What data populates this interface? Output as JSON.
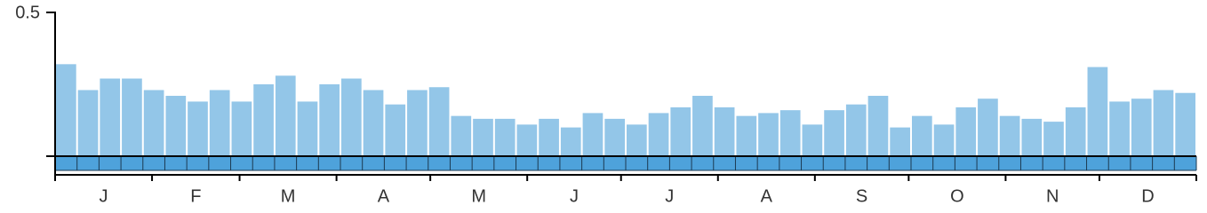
{
  "chart_data": {
    "type": "bar",
    "color": "#93c6e8",
    "values": [
      0.32,
      0.23,
      0.27,
      0.27,
      0.23,
      0.21,
      0.19,
      0.23,
      0.19,
      0.25,
      0.28,
      0.19,
      0.25,
      0.27,
      0.23,
      0.18,
      0.23,
      0.24,
      0.14,
      0.13,
      0.13,
      0.11,
      0.13,
      0.1,
      0.15,
      0.13,
      0.11,
      0.15,
      0.17,
      0.21,
      0.17,
      0.14,
      0.15,
      0.16,
      0.11,
      0.16,
      0.18,
      0.21,
      0.1,
      0.14,
      0.11,
      0.17,
      0.2,
      0.14,
      0.13,
      0.12,
      0.17,
      0.31,
      0.19,
      0.2,
      0.23,
      0.22
    ],
    "ylim": [
      0,
      0.5
    ],
    "yticks": [
      0.5
    ],
    "months": [
      "J",
      "F",
      "M",
      "A",
      "M",
      "J",
      "J",
      "A",
      "S",
      "O",
      "N",
      "D"
    ]
  }
}
